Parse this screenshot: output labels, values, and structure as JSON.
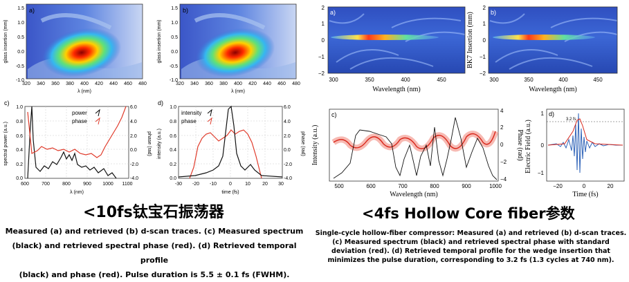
{
  "left": {
    "heading": "<10fs钛宝石振荡器",
    "caption_lines": [
      "Measured (a) and retrieved (b) d-scan traces. (c) Measured spectrum",
      "(black) and retrieved spectral phase (red). (d) Retrieved temporal profile",
      "(black) and phase (red). Pulse duration is 5.5 ± 0.1 fs (FWHM)."
    ],
    "panel_a": {
      "label": "a)",
      "ylabel": "glass insertion (mm)",
      "xlabel": "λ (nm)",
      "xticks": [
        "320",
        "340",
        "360",
        "380",
        "400",
        "420",
        "440",
        "460",
        "480"
      ],
      "yticks": [
        "1.5",
        "1.0",
        "0.5",
        "0.0",
        "-0.5",
        "-1.0"
      ]
    },
    "panel_b": {
      "label": "b)",
      "ylabel": "glass insertion (mm)",
      "xlabel": "λ (nm)",
      "xticks": [
        "320",
        "340",
        "360",
        "380",
        "400",
        "420",
        "440",
        "460",
        "480"
      ],
      "yticks": [
        "1.5",
        "1.0",
        "0.5",
        "0.0",
        "-0.5",
        "-1.0"
      ]
    },
    "panel_c": {
      "label": "c)",
      "ylabel": "spectral power (a.u.)",
      "y2label": "phase (rad)",
      "xlabel": "λ (nm)",
      "xticks": [
        "600",
        "700",
        "800",
        "900",
        "1000",
        "1100"
      ],
      "yticks": [
        "1.0",
        "0.8",
        "0.6",
        "0.4",
        "0.2",
        "0.0"
      ],
      "y2ticks": [
        "6.0",
        "4.0",
        "2.0",
        "0.0",
        "-2.0",
        "-4.0"
      ],
      "legend": [
        "power",
        "phase"
      ]
    },
    "panel_d": {
      "label": "d)",
      "ylabel": "intensity (a.u.)",
      "y2label": "phase (rad)",
      "xlabel": "time (fs)",
      "xticks": [
        "-30",
        "-20",
        "-10",
        "0",
        "10",
        "20",
        "30"
      ],
      "yticks": [
        "1.0",
        "0.8",
        "0.6",
        "0.4",
        "0.2",
        "0.0"
      ],
      "y2ticks": [
        "6.0",
        "4.0",
        "2.0",
        "0.0",
        "-2.0",
        "-4.0"
      ],
      "legend": [
        "intensity",
        "phase"
      ]
    }
  },
  "right": {
    "heading": "<4fs Hollow Core fiber参数",
    "caption_lines": [
      "Single-cycle hollow-fiber compressor: Measured (a) and retrieved (b) d-scan traces.",
      "(c) Measured spectrum (black) and retrieved spectral phase with standard",
      "deviation (red). (d) Retrieved temporal profile for the wedge insertion that",
      "minimizes the pulse duration, corresponding to 3.2 fs (1.3 cycles at 740 nm)."
    ],
    "panel_a": {
      "label": "a)",
      "xlabel": "Wavelength (nm)",
      "xticks": [
        "300",
        "350",
        "400",
        "450"
      ],
      "yticks": [
        "2",
        "1",
        "0",
        "−1",
        "−2"
      ]
    },
    "panel_b": {
      "label": "b)",
      "ylabel": "BK7 Insertion (mm)",
      "xlabel": "Wavelength (nm)",
      "xticks": [
        "300",
        "350",
        "400",
        "450"
      ],
      "yticks": [
        "2",
        "1",
        "0",
        "−1",
        "−2"
      ]
    },
    "panel_c": {
      "label": "c)",
      "ylabel": "Intensity (a.u.)",
      "y2label": "Phase (rad)",
      "xlabel": "Wavelength (nm)",
      "xticks": [
        "500",
        "600",
        "700",
        "800",
        "900",
        "1000"
      ],
      "y2ticks": [
        "4",
        "2",
        "0",
        "−2",
        "−4"
      ]
    },
    "panel_d": {
      "label": "d)",
      "ylabel": "Electric Field (a.u.)",
      "xlabel": "Time (fs)",
      "xticks": [
        "−20",
        "0",
        "20"
      ],
      "yticks": [
        "1",
        "0",
        "−1"
      ],
      "annotation": "3.2 fs"
    }
  }
}
